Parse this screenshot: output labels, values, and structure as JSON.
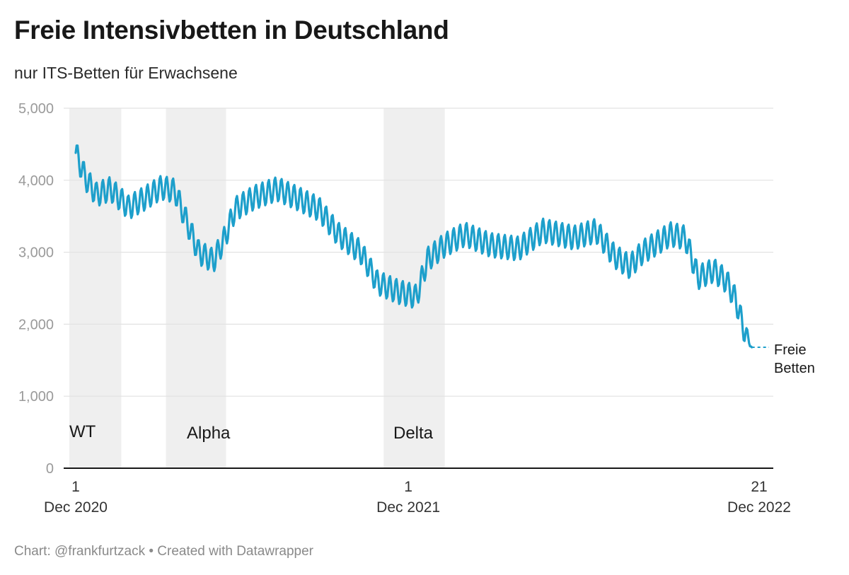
{
  "page": {
    "title": "Freie Intensivbetten in Deutschland",
    "subtitle": "nur ITS-Betten für Erwachsene",
    "footer": "Chart: @frankfurtzack • Created with Datawrapper"
  },
  "chart_data": {
    "type": "line",
    "title": "Freie Intensivbetten in Deutschland",
    "subtitle": "nur ITS-Betten für Erwachsene",
    "xlabel": "",
    "ylabel": "",
    "x_range": [
      "2020-12-01",
      "2022-12-21"
    ],
    "ylim": [
      0,
      5000
    ],
    "y_ticks": [
      0,
      1000,
      2000,
      3000,
      4000,
      5000
    ],
    "y_tick_labels": [
      "0",
      "1,000",
      "2,000",
      "3,000",
      "4,000",
      "5,000"
    ],
    "x_ticks": [
      {
        "date": "2020-12-01",
        "day": "1",
        "month": "Dec 2020"
      },
      {
        "date": "2021-12-01",
        "day": "1",
        "month": "Dec 2021"
      },
      {
        "date": "2022-12-21",
        "day": "21",
        "month": "Dec 2022"
      }
    ],
    "grid": true,
    "colors": {
      "line": "#1d9fcb",
      "band": "#efefef",
      "grid": "#e2e2e2",
      "axis": "#181818"
    },
    "shaded_periods": [
      {
        "label": "WT",
        "start": "2020-11-24",
        "end": "2021-01-20"
      },
      {
        "label": "Alpha",
        "start": "2021-03-10",
        "end": "2021-05-15"
      },
      {
        "label": "Delta",
        "start": "2021-11-04",
        "end": "2022-01-10"
      }
    ],
    "series": [
      {
        "name": "Freie Betten",
        "weekly_oscillation": true,
        "points": [
          [
            "2020-12-01",
            4380
          ],
          [
            "2020-12-12",
            4020
          ],
          [
            "2020-12-24",
            3800
          ],
          [
            "2021-01-08",
            3880
          ],
          [
            "2021-01-28",
            3620
          ],
          [
            "2021-02-15",
            3750
          ],
          [
            "2021-03-05",
            3900
          ],
          [
            "2021-03-20",
            3850
          ],
          [
            "2021-04-01",
            3450
          ],
          [
            "2021-04-15",
            3000
          ],
          [
            "2021-05-01",
            2880
          ],
          [
            "2021-05-12",
            3150
          ],
          [
            "2021-05-25",
            3600
          ],
          [
            "2021-06-15",
            3760
          ],
          [
            "2021-07-10",
            3880
          ],
          [
            "2021-08-01",
            3750
          ],
          [
            "2021-08-25",
            3600
          ],
          [
            "2021-09-15",
            3250
          ],
          [
            "2021-10-10",
            3000
          ],
          [
            "2021-10-28",
            2580
          ],
          [
            "2021-11-20",
            2450
          ],
          [
            "2021-12-10",
            2380
          ],
          [
            "2021-12-22",
            2900
          ],
          [
            "2022-01-10",
            3100
          ],
          [
            "2022-02-01",
            3250
          ],
          [
            "2022-03-01",
            3100
          ],
          [
            "2022-04-01",
            3050
          ],
          [
            "2022-04-28",
            3300
          ],
          [
            "2022-06-01",
            3200
          ],
          [
            "2022-06-25",
            3300
          ],
          [
            "2022-07-15",
            2950
          ],
          [
            "2022-08-01",
            2800
          ],
          [
            "2022-08-15",
            3000
          ],
          [
            "2022-09-15",
            3250
          ],
          [
            "2022-10-01",
            3200
          ],
          [
            "2022-10-15",
            2650
          ],
          [
            "2022-11-01",
            2750
          ],
          [
            "2022-11-15",
            2600
          ],
          [
            "2022-11-25",
            2350
          ],
          [
            "2022-12-05",
            1900
          ],
          [
            "2022-12-13",
            1680
          ]
        ],
        "projected": [
          [
            "2022-12-13",
            1680
          ],
          [
            "2022-12-21",
            1680
          ]
        ]
      }
    ],
    "end_label": [
      "Freie",
      "Betten"
    ]
  }
}
